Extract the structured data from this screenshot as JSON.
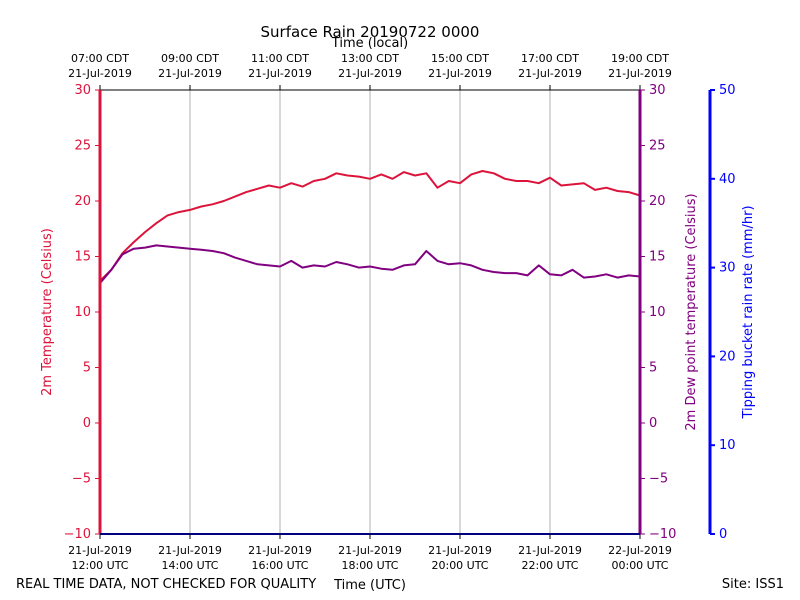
{
  "chart_data": {
    "type": "line",
    "title": "Surface Rain 20190722 0000",
    "top_axis_label": "Time (local)",
    "xlabel": "Time (UTC)",
    "ylabel_left": "2m Temperature (Celsius)",
    "ylabel_right": "2m Dew point temperature (Celsius)",
    "ylabel_far_right": "Tipping bucket rain rate (mm/hr)",
    "footer_left": "REAL TIME DATA, NOT CHECKED FOR QUALITY",
    "footer_right": "Site: ISS1",
    "x_range_utc_hours": [
      12,
      24
    ],
    "ylim_temperature": [
      -10,
      30
    ],
    "ylim_dewpoint": [
      -10,
      30
    ],
    "ylim_rain_rate": [
      0,
      50
    ],
    "y_ticks_temperature": [
      -10,
      -5,
      0,
      5,
      10,
      15,
      20,
      25,
      30
    ],
    "y_ticks_dewpoint": [
      -10,
      -5,
      0,
      5,
      10,
      15,
      20,
      25,
      30
    ],
    "y_ticks_rain_rate": [
      0,
      10,
      20,
      30,
      40,
      50
    ],
    "bottom_ticks": [
      {
        "utc_hour": 12,
        "date": "21-Jul-2019",
        "time": "12:00 UTC"
      },
      {
        "utc_hour": 14,
        "date": "21-Jul-2019",
        "time": "14:00 UTC"
      },
      {
        "utc_hour": 16,
        "date": "21-Jul-2019",
        "time": "16:00 UTC"
      },
      {
        "utc_hour": 18,
        "date": "21-Jul-2019",
        "time": "18:00 UTC"
      },
      {
        "utc_hour": 20,
        "date": "21-Jul-2019",
        "time": "20:00 UTC"
      },
      {
        "utc_hour": 22,
        "date": "21-Jul-2019",
        "time": "22:00 UTC"
      },
      {
        "utc_hour": 24,
        "date": "22-Jul-2019",
        "time": "00:00 UTC"
      }
    ],
    "top_ticks": [
      {
        "utc_hour": 12,
        "time": "07:00 CDT",
        "date": "21-Jul-2019"
      },
      {
        "utc_hour": 14,
        "time": "09:00 CDT",
        "date": "21-Jul-2019"
      },
      {
        "utc_hour": 16,
        "time": "11:00 CDT",
        "date": "21-Jul-2019"
      },
      {
        "utc_hour": 18,
        "time": "13:00 CDT",
        "date": "21-Jul-2019"
      },
      {
        "utc_hour": 20,
        "time": "15:00 CDT",
        "date": "21-Jul-2019"
      },
      {
        "utc_hour": 22,
        "time": "17:00 CDT",
        "date": "21-Jul-2019"
      },
      {
        "utc_hour": 24,
        "time": "19:00 CDT",
        "date": "21-Jul-2019"
      }
    ],
    "grid": true,
    "series": [
      {
        "key": "temperature",
        "color": "#dc143c",
        "axis": "left",
        "x": [
          12.0,
          12.25,
          12.5,
          12.75,
          13.0,
          13.25,
          13.5,
          13.75,
          14.0,
          14.25,
          14.5,
          14.75,
          15.0,
          15.25,
          15.5,
          15.75,
          16.0,
          16.25,
          16.5,
          16.75,
          17.0,
          17.25,
          17.5,
          17.75,
          18.0,
          18.25,
          18.5,
          18.75,
          19.0,
          19.25,
          19.5,
          19.75,
          20.0,
          20.25,
          20.5,
          20.75,
          21.0,
          21.25,
          21.5,
          21.75,
          22.0,
          22.25,
          22.5,
          22.75,
          23.0,
          23.25,
          23.5,
          23.75,
          24.0
        ],
        "values": [
          12.8,
          13.8,
          15.3,
          16.3,
          17.2,
          18.0,
          18.7,
          19.0,
          19.2,
          19.5,
          19.7,
          20.0,
          20.4,
          20.8,
          21.1,
          21.4,
          21.2,
          21.6,
          21.3,
          21.8,
          22.0,
          22.5,
          22.3,
          22.2,
          22.0,
          22.4,
          22.0,
          22.6,
          22.3,
          22.5,
          21.2,
          21.8,
          21.6,
          22.4,
          22.7,
          22.5,
          22.0,
          21.8,
          21.8,
          21.6,
          22.1,
          21.4,
          21.5,
          21.6,
          21.0,
          21.2,
          20.9,
          20.8,
          20.5
        ]
      },
      {
        "key": "dewpoint",
        "color": "#800080",
        "axis": "right",
        "x": [
          12.0,
          12.25,
          12.5,
          12.75,
          13.0,
          13.25,
          13.5,
          13.75,
          14.0,
          14.25,
          14.5,
          14.75,
          15.0,
          15.25,
          15.5,
          15.75,
          16.0,
          16.25,
          16.5,
          16.75,
          17.0,
          17.25,
          17.5,
          17.75,
          18.0,
          18.25,
          18.5,
          18.75,
          19.0,
          19.25,
          19.5,
          19.75,
          20.0,
          20.25,
          20.5,
          20.75,
          21.0,
          21.25,
          21.5,
          21.75,
          22.0,
          22.25,
          22.5,
          22.75,
          23.0,
          23.25,
          23.5,
          23.75,
          24.0
        ],
        "values": [
          12.6,
          13.8,
          15.2,
          15.7,
          15.8,
          16.0,
          15.9,
          15.8,
          15.7,
          15.6,
          15.5,
          15.3,
          14.9,
          14.6,
          14.3,
          14.2,
          14.1,
          14.6,
          14.0,
          14.2,
          14.1,
          14.5,
          14.3,
          14.0,
          14.1,
          13.9,
          13.8,
          14.2,
          14.3,
          15.5,
          14.6,
          14.3,
          14.4,
          14.2,
          13.8,
          13.6,
          13.5,
          13.5,
          13.3,
          14.2,
          13.4,
          13.3,
          13.8,
          13.1,
          13.2,
          13.4,
          13.1,
          13.3,
          13.2
        ]
      }
    ]
  }
}
